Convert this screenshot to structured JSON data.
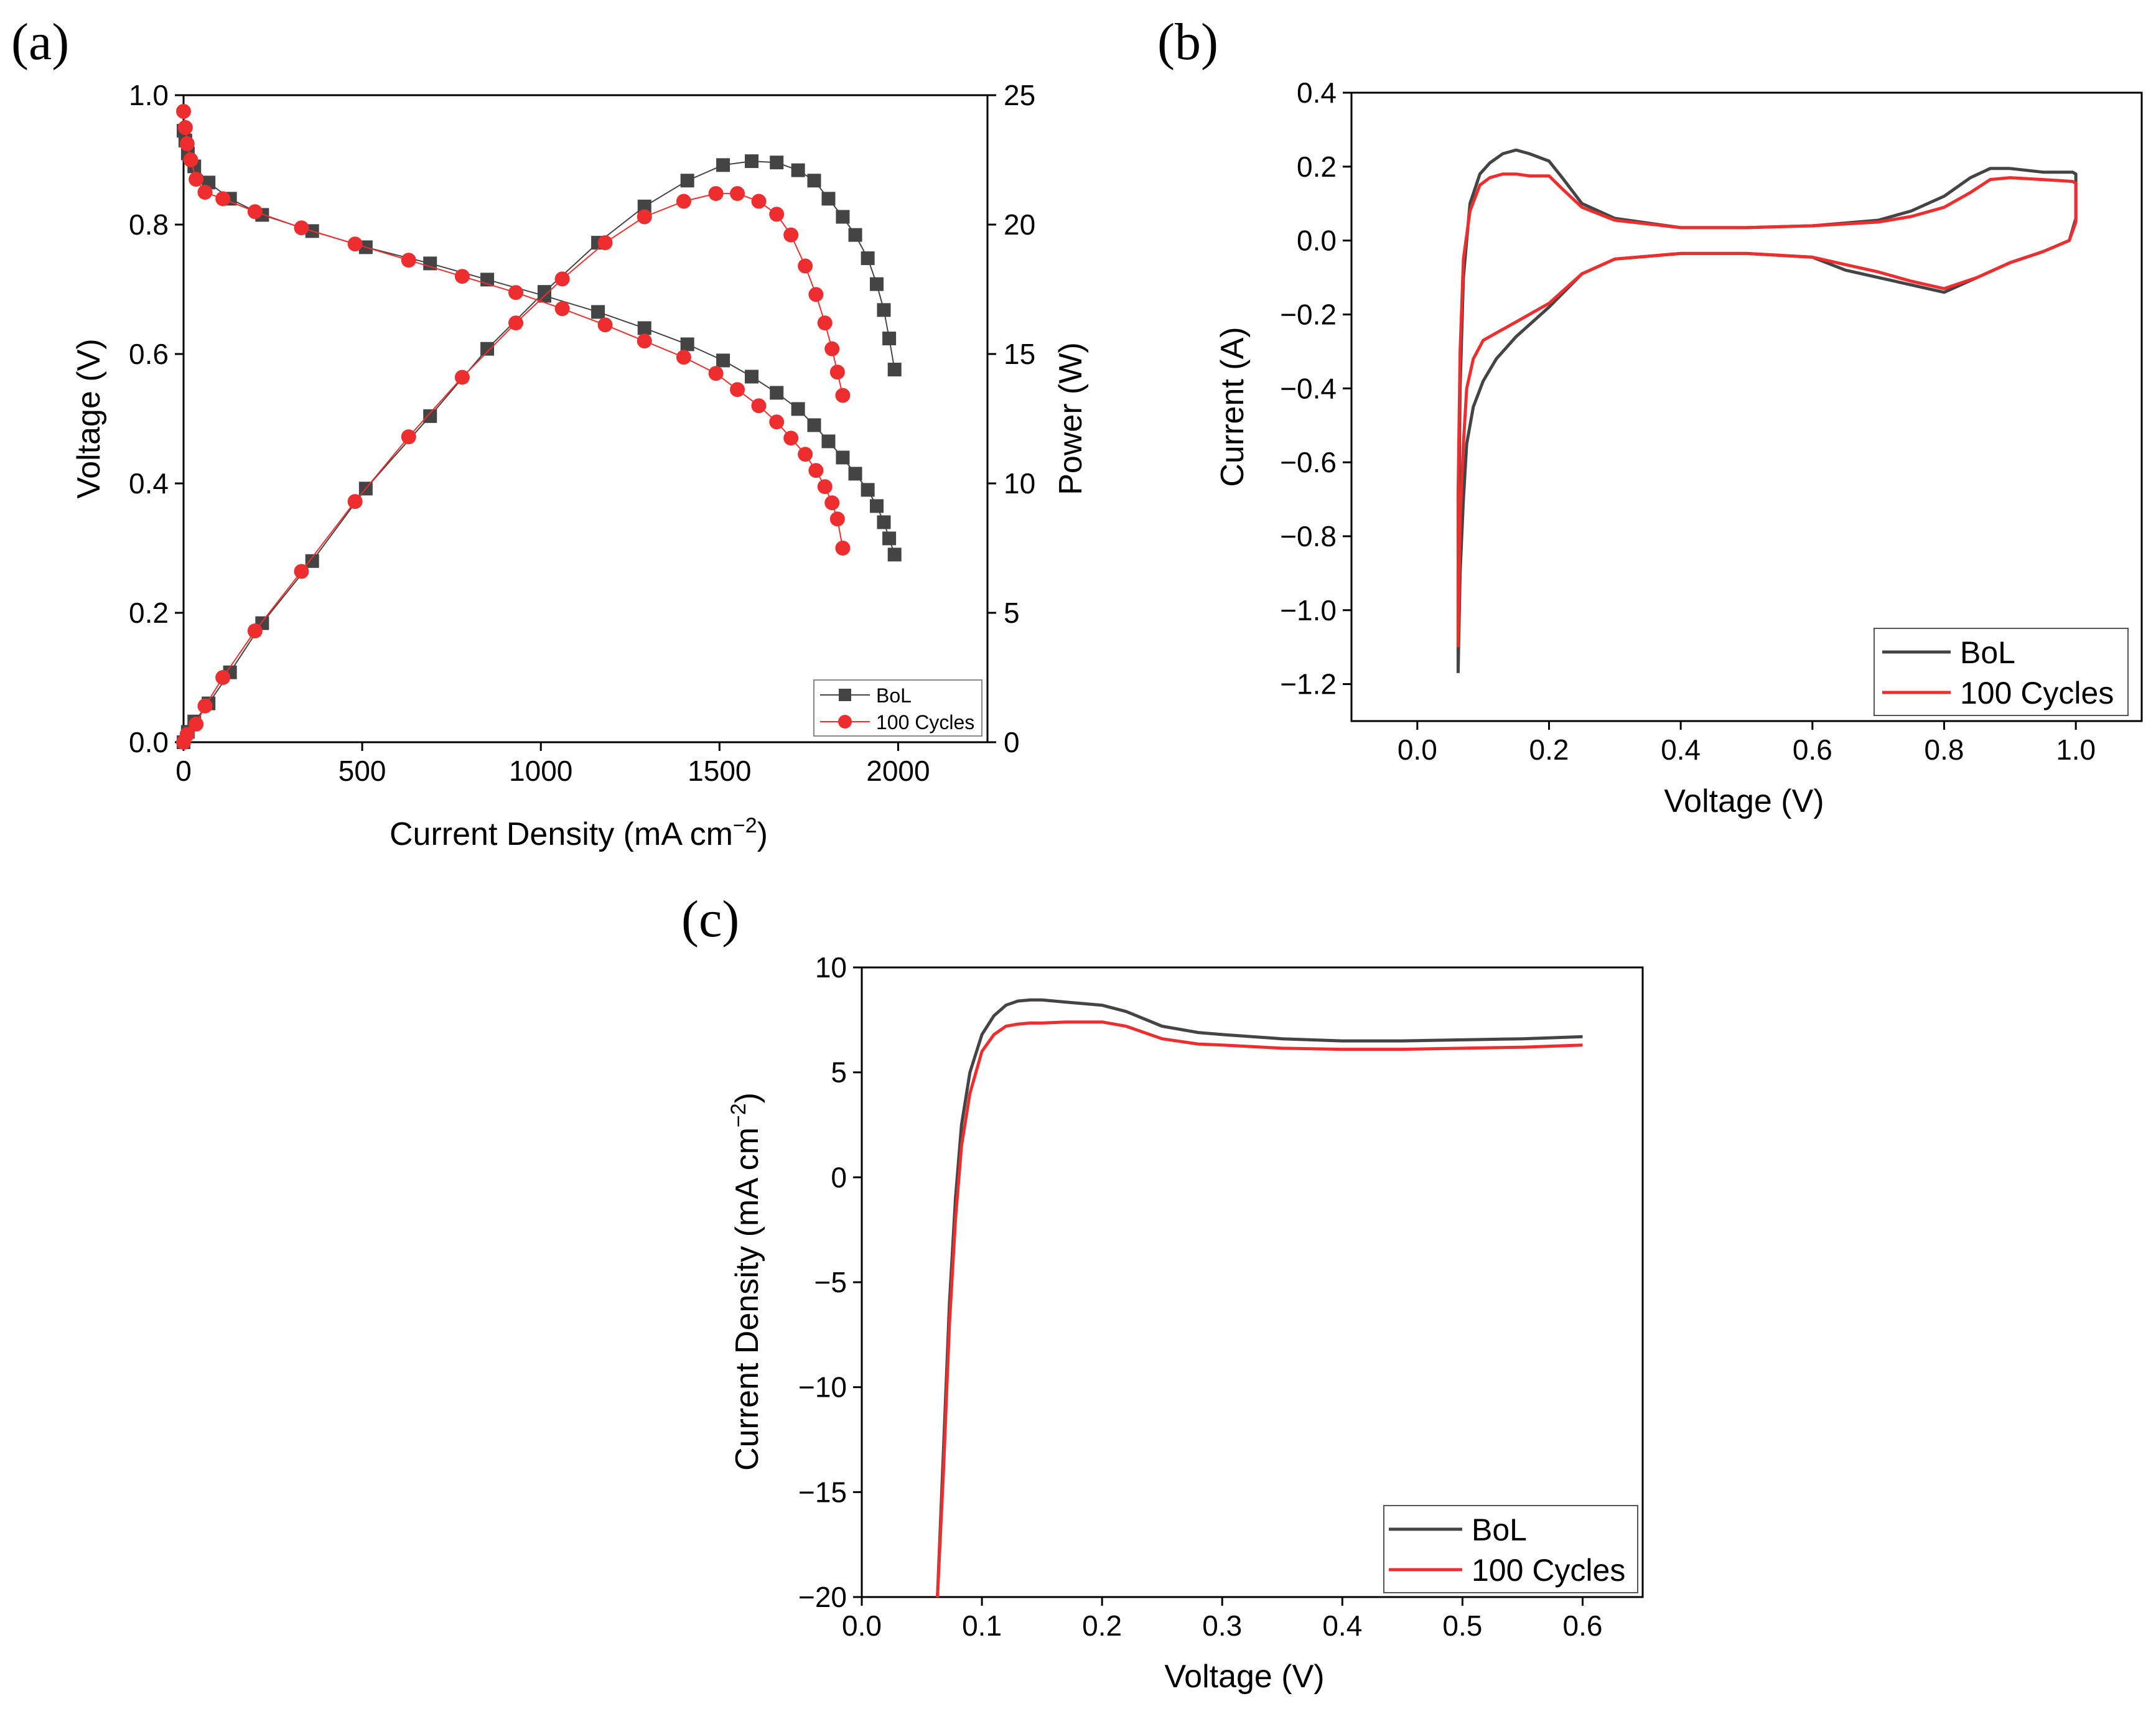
{
  "colors": {
    "bol": "#444444",
    "cycles": "#ee2e2e",
    "axis": "#000000",
    "background": "#ffffff"
  },
  "chart_data": [
    {
      "panel": "(a)",
      "type": "scatter",
      "title": "",
      "xlabel": "Current Density (mA cm",
      "xlabel_sup": "−2",
      "xlabel_close": ")",
      "ylabel": "Voltage (V)",
      "y2label": "Power (W)",
      "xlim": [
        0,
        2250
      ],
      "ylim": [
        0,
        1.0
      ],
      "y2lim": [
        0,
        25
      ],
      "xticks": [
        "0",
        "500",
        "1000",
        "1500",
        "2000"
      ],
      "xtick_values": [
        0,
        500,
        1000,
        1500,
        2000
      ],
      "yticks": [
        "0.0",
        "0.2",
        "0.4",
        "0.6",
        "0.8",
        "1.0"
      ],
      "ytick_values": [
        0,
        0.2,
        0.4,
        0.6,
        0.8,
        1.0
      ],
      "y2ticks": [
        "0",
        "5",
        "10",
        "15",
        "20",
        "25"
      ],
      "y2tick_values": [
        0,
        5,
        10,
        15,
        20,
        25
      ],
      "legend": [
        "BoL",
        "100 Cycles"
      ],
      "legend_position": "bottom-right",
      "series": [
        {
          "name": "BoL",
          "quantity": "voltage",
          "marker": "square",
          "x": [
            0,
            5,
            12,
            30,
            70,
            130,
            220,
            360,
            510,
            690,
            850,
            1010,
            1160,
            1290,
            1410,
            1510,
            1590,
            1660,
            1720,
            1765,
            1805,
            1845,
            1880,
            1915,
            1940,
            1960,
            1975,
            1990
          ],
          "y": [
            0.945,
            0.93,
            0.91,
            0.89,
            0.865,
            0.84,
            0.815,
            0.79,
            0.765,
            0.74,
            0.715,
            0.69,
            0.665,
            0.64,
            0.615,
            0.59,
            0.565,
            0.54,
            0.515,
            0.49,
            0.465,
            0.44,
            0.415,
            0.39,
            0.365,
            0.34,
            0.315,
            0.29
          ]
        },
        {
          "name": "BoL",
          "quantity": "power",
          "marker": "square",
          "x": [
            0,
            12,
            30,
            70,
            130,
            220,
            360,
            510,
            690,
            850,
            1010,
            1160,
            1290,
            1410,
            1510,
            1590,
            1660,
            1720,
            1765,
            1805,
            1845,
            1880,
            1915,
            1940,
            1960,
            1975,
            1990
          ],
          "y": [
            0,
            0.4,
            0.8,
            1.5,
            2.7,
            4.6,
            7.0,
            9.8,
            12.6,
            15.2,
            17.4,
            19.3,
            20.7,
            21.7,
            22.3,
            22.45,
            22.4,
            22.1,
            21.7,
            21.0,
            20.3,
            19.6,
            18.7,
            17.7,
            16.7,
            15.6,
            14.4
          ]
        },
        {
          "name": "100 Cycles",
          "quantity": "voltage",
          "marker": "circle",
          "x": [
            0,
            5,
            10,
            20,
            35,
            60,
            110,
            200,
            330,
            480,
            630,
            780,
            930,
            1060,
            1180,
            1290,
            1400,
            1490,
            1550,
            1610,
            1660,
            1700,
            1740,
            1770,
            1795,
            1815,
            1830,
            1845
          ],
          "y": [
            0.975,
            0.95,
            0.925,
            0.9,
            0.87,
            0.85,
            0.84,
            0.82,
            0.795,
            0.77,
            0.745,
            0.72,
            0.695,
            0.67,
            0.645,
            0.62,
            0.595,
            0.57,
            0.545,
            0.52,
            0.495,
            0.47,
            0.445,
            0.42,
            0.395,
            0.37,
            0.345,
            0.3
          ]
        },
        {
          "name": "100 Cycles",
          "quantity": "power",
          "marker": "circle",
          "x": [
            0,
            10,
            35,
            60,
            110,
            200,
            330,
            480,
            630,
            780,
            930,
            1060,
            1180,
            1290,
            1400,
            1490,
            1550,
            1610,
            1660,
            1700,
            1740,
            1770,
            1795,
            1815,
            1830,
            1845
          ],
          "y": [
            0,
            0.3,
            0.7,
            1.4,
            2.5,
            4.3,
            6.6,
            9.3,
            11.8,
            14.1,
            16.2,
            17.9,
            19.3,
            20.3,
            20.9,
            21.2,
            21.2,
            20.9,
            20.4,
            19.6,
            18.4,
            17.3,
            16.2,
            15.2,
            14.3,
            13.4
          ]
        }
      ]
    },
    {
      "panel": "(b)",
      "type": "line",
      "title": "",
      "xlabel": "Voltage (V)",
      "ylabel": "Current (A)",
      "xlim": [
        -0.1,
        1.1
      ],
      "ylim": [
        -1.3,
        0.4
      ],
      "xticks": [
        "0.0",
        "0.2",
        "0.4",
        "0.6",
        "0.8",
        "1.0"
      ],
      "xtick_values": [
        0,
        0.2,
        0.4,
        0.6,
        0.8,
        1.0
      ],
      "yticks": [
        "0.4",
        "0.2",
        "0.0",
        "−0.2",
        "−0.4",
        "−0.6",
        "−0.8",
        "−1.0",
        "−1.2"
      ],
      "ytick_values": [
        0.4,
        0.2,
        0,
        -0.2,
        -0.4,
        -0.6,
        -0.8,
        -1.0,
        -1.2
      ],
      "legend": [
        "BoL",
        "100 Cycles"
      ],
      "legend_position": "bottom-right",
      "series": [
        {
          "name": "BoL",
          "x": [
            0.062,
            0.062,
            0.065,
            0.07,
            0.08,
            0.095,
            0.11,
            0.13,
            0.15,
            0.17,
            0.2,
            0.22,
            0.25,
            0.3,
            0.4,
            0.5,
            0.6,
            0.7,
            0.75,
            0.8,
            0.84,
            0.87,
            0.9,
            0.95,
            0.995,
            1.0,
            1.0,
            0.99,
            0.95,
            0.9,
            0.85,
            0.8,
            0.75,
            0.7,
            0.65,
            0.6,
            0.5,
            0.4,
            0.3,
            0.25,
            0.2,
            0.15,
            0.12,
            0.1,
            0.085,
            0.075,
            0.07,
            0.065,
            0.062
          ],
          "y": [
            -1.17,
            -0.9,
            -0.4,
            -0.1,
            0.1,
            0.18,
            0.21,
            0.235,
            0.245,
            0.235,
            0.215,
            0.17,
            0.1,
            0.06,
            0.035,
            0.035,
            0.04,
            0.055,
            0.08,
            0.12,
            0.17,
            0.195,
            0.195,
            0.185,
            0.185,
            0.18,
            0.06,
            0.0,
            -0.03,
            -0.06,
            -0.1,
            -0.14,
            -0.12,
            -0.1,
            -0.08,
            -0.045,
            -0.035,
            -0.035,
            -0.05,
            -0.09,
            -0.18,
            -0.26,
            -0.32,
            -0.38,
            -0.45,
            -0.55,
            -0.7,
            -0.9,
            -1.17
          ]
        },
        {
          "name": "100 Cycles",
          "x": [
            0.062,
            0.062,
            0.065,
            0.07,
            0.08,
            0.095,
            0.11,
            0.13,
            0.15,
            0.17,
            0.2,
            0.22,
            0.25,
            0.3,
            0.4,
            0.5,
            0.6,
            0.7,
            0.75,
            0.8,
            0.84,
            0.87,
            0.9,
            0.95,
            0.995,
            1.0,
            1.0,
            0.99,
            0.95,
            0.9,
            0.85,
            0.8,
            0.75,
            0.7,
            0.65,
            0.6,
            0.5,
            0.4,
            0.3,
            0.25,
            0.2,
            0.15,
            0.12,
            0.1,
            0.085,
            0.075,
            0.07,
            0.065,
            0.062
          ],
          "y": [
            -1.1,
            -0.68,
            -0.3,
            -0.05,
            0.08,
            0.15,
            0.17,
            0.18,
            0.18,
            0.175,
            0.175,
            0.14,
            0.09,
            0.055,
            0.035,
            0.035,
            0.04,
            0.05,
            0.065,
            0.09,
            0.13,
            0.165,
            0.17,
            0.165,
            0.16,
            0.155,
            0.05,
            0.0,
            -0.03,
            -0.06,
            -0.1,
            -0.13,
            -0.11,
            -0.085,
            -0.065,
            -0.045,
            -0.035,
            -0.035,
            -0.05,
            -0.09,
            -0.17,
            -0.22,
            -0.25,
            -0.27,
            -0.32,
            -0.4,
            -0.55,
            -0.75,
            -1.1
          ]
        }
      ]
    },
    {
      "panel": "(c)",
      "type": "line",
      "title": "",
      "xlabel": "Voltage (V)",
      "ylabel": "Current Density (mA cm",
      "ylabel_sup": "−2",
      "ylabel_close": ")",
      "xlim": [
        0,
        0.65
      ],
      "ylim": [
        -20,
        10
      ],
      "xticks": [
        "0.0",
        "0.1",
        "0.2",
        "0.3",
        "0.4",
        "0.5",
        "0.6"
      ],
      "xtick_values": [
        0,
        0.1,
        0.2,
        0.3,
        0.4,
        0.5,
        0.6
      ],
      "yticks": [
        "10",
        "5",
        "0",
        "−5",
        "−10",
        "−15",
        "−20"
      ],
      "ytick_values": [
        10,
        5,
        0,
        -5,
        -10,
        -15,
        -20
      ],
      "legend": [
        "BoL",
        "100 Cycles"
      ],
      "legend_position": "bottom-right",
      "series": [
        {
          "name": "BoL",
          "x": [
            0.063,
            0.068,
            0.073,
            0.078,
            0.083,
            0.09,
            0.1,
            0.11,
            0.12,
            0.13,
            0.14,
            0.15,
            0.17,
            0.2,
            0.22,
            0.25,
            0.28,
            0.3,
            0.35,
            0.4,
            0.45,
            0.5,
            0.55,
            0.6
          ],
          "y": [
            -20,
            -13,
            -6,
            -1,
            2.5,
            5,
            6.8,
            7.7,
            8.2,
            8.4,
            8.45,
            8.45,
            8.35,
            8.2,
            7.9,
            7.2,
            6.9,
            6.8,
            6.6,
            6.5,
            6.5,
            6.55,
            6.6,
            6.7
          ]
        },
        {
          "name": "100 Cycles",
          "x": [
            0.063,
            0.068,
            0.073,
            0.078,
            0.083,
            0.09,
            0.1,
            0.11,
            0.12,
            0.13,
            0.14,
            0.15,
            0.17,
            0.2,
            0.22,
            0.25,
            0.28,
            0.3,
            0.35,
            0.4,
            0.45,
            0.5,
            0.55,
            0.6
          ],
          "y": [
            -20,
            -14,
            -7,
            -2,
            1.5,
            4,
            6.0,
            6.8,
            7.2,
            7.3,
            7.35,
            7.35,
            7.4,
            7.4,
            7.2,
            6.6,
            6.35,
            6.3,
            6.15,
            6.1,
            6.1,
            6.15,
            6.2,
            6.3
          ]
        }
      ]
    }
  ]
}
